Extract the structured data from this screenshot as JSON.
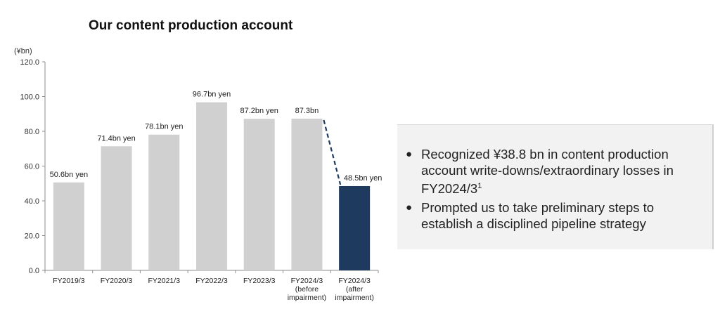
{
  "chart_data": {
    "type": "bar",
    "title": "Our content production account",
    "unit_label": "(¥bn)",
    "ylim": [
      0,
      120
    ],
    "yticks": [
      "0.0",
      "20.0",
      "40.0",
      "60.0",
      "80.0",
      "100.0",
      "120.0"
    ],
    "categories": [
      [
        "FY2019/3"
      ],
      [
        "FY2020/3"
      ],
      [
        "FY2021/3"
      ],
      [
        "FY2022/3"
      ],
      [
        "FY2023/3"
      ],
      [
        "FY2024/3",
        "(before",
        "impairment)"
      ],
      [
        "FY2024/3",
        "(after",
        "impairment)"
      ]
    ],
    "values": [
      50.6,
      71.4,
      78.1,
      96.7,
      87.2,
      87.3,
      48.5
    ],
    "data_labels": [
      "50.6bn yen",
      "71.4bn yen",
      "78.1bn yen",
      "96.7bn yen",
      "87.2bn yen",
      "87.3bn",
      "48.5bn yen"
    ],
    "highlight_index": 6,
    "colors": {
      "bar": "#d0d0d0",
      "highlight": "#1f3a5f",
      "dashed_line": "#1f3a5f",
      "axis": "#8c8c8c"
    },
    "grid": false
  },
  "info_box": {
    "bullet_symbol": "●",
    "bullets": [
      {
        "text": "Recognized ¥38.8 bn in content production account write-downs/extraordinary losses in FY2024/3",
        "footnote": "1"
      },
      {
        "text": "Prompted us to take preliminary steps to establish a disciplined pipeline strategy",
        "footnote": ""
      }
    ]
  }
}
